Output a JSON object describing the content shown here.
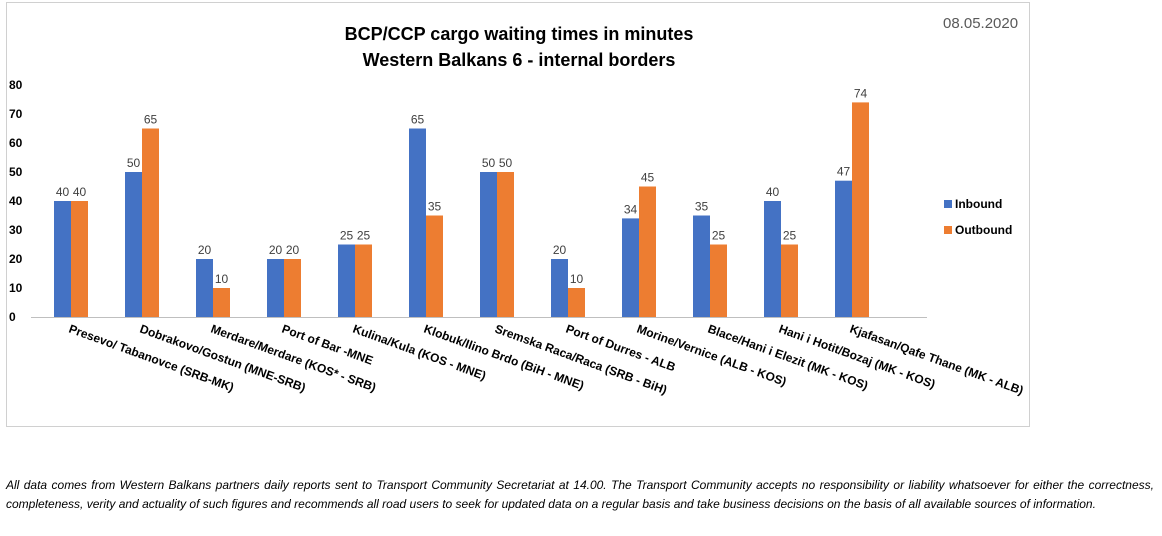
{
  "date": "08.05.2020",
  "disclaimer": "All data comes from Western Balkans partners daily reports sent to Transport Community Secretariat at 14.00. The Transport Community accepts no responsibility or liability whatsoever for either the correctness, completeness, verity and actuality of such figures and recommends all road users to seek for updated data on a regular basis and take business decisions on the basis of all available sources of information.",
  "chart_data": {
    "type": "bar",
    "title_line1": "BCP/CCP cargo waiting times in minutes",
    "title_line2": "Western Balkans 6 - internal borders",
    "categories": [
      "Presevo/ Tabanovce (SRB-MK)",
      "Dobrakovo/Gostun (MNE-SRB)",
      "Merdare/Merdare (KOS* - SRB)",
      "Port of Bar -MNE",
      "Kulina/Kula (KOS - MNE)",
      "Klobuk/Ilino Brdo (BiH - MNE)",
      "Sremska Raca/Raca (SRB - BiH)",
      "Port of Durres - ALB",
      "Morine/Vernice (ALB - KOS)",
      "Blace/Hani i Elezit (MK - KOS)",
      "Hani i Hotit/Bozaj (MK - KOS)",
      "Kjafasan/Qafe Thane (MK - ALB)"
    ],
    "series": [
      {
        "name": "Inbound",
        "color": "#4472C4",
        "values": [
          40,
          50,
          20,
          20,
          25,
          65,
          50,
          20,
          34,
          35,
          40,
          47
        ]
      },
      {
        "name": "Outbound",
        "color": "#ED7D31",
        "values": [
          40,
          65,
          10,
          20,
          25,
          35,
          50,
          10,
          45,
          25,
          25,
          74
        ]
      }
    ],
    "yticks": [
      "0",
      "10",
      "20",
      "30",
      "40",
      "50",
      "60",
      "70",
      "80"
    ],
    "ylim": [
      0,
      80
    ],
    "grid": false,
    "legend": "right"
  }
}
